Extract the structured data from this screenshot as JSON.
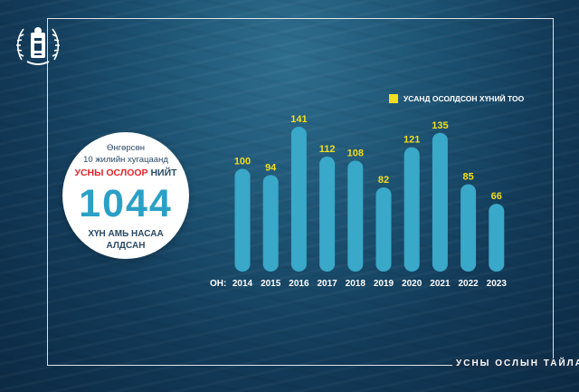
{
  "intro": {
    "line1": "Өнгөрсөн",
    "line2": "10 жилийн хугацаанд",
    "highlight_red": "УСНЫ ОСЛООР",
    "highlight_dark": "НИЙТ",
    "total": "1044",
    "line4": "ХҮН АМЬ НАСАА",
    "line5": "АЛДСАН"
  },
  "footer": {
    "text": "УСНЫ ОСЛЫН ТАЙЛАН"
  },
  "colors": {
    "bar": "#3aa8c8",
    "value_label": "#f2de1e",
    "legend_swatch": "#f2de1e"
  },
  "chart_data": {
    "type": "bar",
    "legend": "УСАНД ОСОЛДСОН ХҮНИЙ ТОО",
    "xlabel": "ОН:",
    "categories": [
      "2014",
      "2015",
      "2016",
      "2017",
      "2018",
      "2019",
      "2020",
      "2021",
      "2022",
      "2023"
    ],
    "values": [
      100,
      94,
      141,
      112,
      108,
      82,
      121,
      135,
      85,
      66
    ],
    "ylim": [
      0,
      141
    ],
    "grid": false
  }
}
